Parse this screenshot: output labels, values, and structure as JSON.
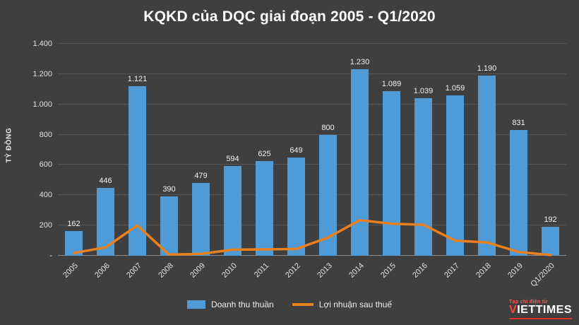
{
  "chart_data": {
    "type": "bar",
    "title": "KQKD của DQC giai đoạn 2005 - Q1/2020",
    "ylabel": "TỶ ĐỒNG",
    "xlabel": "",
    "ylim": [
      0,
      1400
    ],
    "grid": true,
    "legend_position": "bottom",
    "background_color": "#3f3f3f",
    "categories": [
      "2005",
      "2006",
      "2007",
      "2008",
      "2009",
      "2010",
      "2011",
      "2012",
      "2013",
      "2014",
      "2015",
      "2016",
      "2017",
      "2018",
      "2019",
      "Q1/2020"
    ],
    "series": [
      {
        "name": "Doanh thu thuần",
        "type": "bar",
        "color": "#4e9bd8",
        "values": [
          162,
          446,
          1121,
          390,
          479,
          594,
          625,
          649,
          800,
          1230,
          1089,
          1039,
          1059,
          1190,
          831,
          192
        ],
        "labels": [
          "162",
          "446",
          "1.121",
          "390",
          "479",
          "594",
          "625",
          "649",
          "800",
          "1.230",
          "1.089",
          "1.039",
          "1.059",
          "1.190",
          "831",
          "192"
        ]
      },
      {
        "name": "Lợi nhuận sau thuế",
        "type": "line",
        "color": "#e8801e",
        "values": [
          18,
          55,
          200,
          8,
          12,
          40,
          42,
          45,
          120,
          235,
          212,
          205,
          100,
          88,
          25,
          5
        ]
      }
    ],
    "y_ticks": [
      {
        "label": "-",
        "value": 0
      },
      {
        "label": "200",
        "value": 200
      },
      {
        "label": "400",
        "value": 400
      },
      {
        "label": "600",
        "value": 600
      },
      {
        "label": "800",
        "value": 800
      },
      {
        "label": "1.000",
        "value": 1000
      },
      {
        "label": "1.200",
        "value": 1200
      },
      {
        "label": "1.400",
        "value": 1400
      }
    ]
  },
  "logo": {
    "tagline": "Tạp chí điện tử",
    "name_accent": "V",
    "name_rest": "IETTIMES"
  }
}
